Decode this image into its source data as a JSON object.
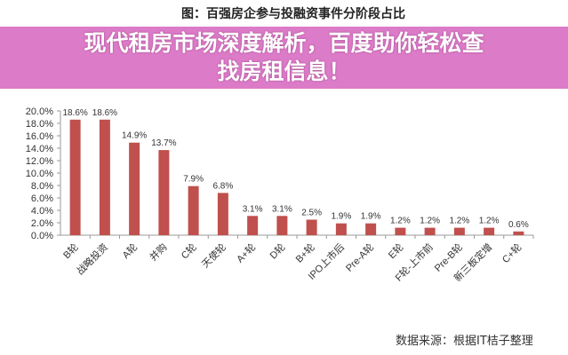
{
  "chart_data": {
    "type": "bar",
    "title": "图：百强房企参与投融资事件分阶段占比",
    "categories": [
      "B轮",
      "战略投资",
      "A轮",
      "并购",
      "C轮",
      "天使轮",
      "A+轮",
      "D轮",
      "B+轮",
      "IPO上市后",
      "Pre-A轮",
      "E轮",
      "F轮-上市前",
      "Pre-B轮",
      "新三板定增",
      "C+轮"
    ],
    "values": [
      18.6,
      18.6,
      14.9,
      13.7,
      7.9,
      6.8,
      3.1,
      3.1,
      2.5,
      1.9,
      1.9,
      1.2,
      1.2,
      1.2,
      1.2,
      0.6
    ],
    "labels": [
      "18.6%",
      "18.6%",
      "14.9%",
      "13.7%",
      "7.9%",
      "6.8%",
      "3.1%",
      "3.1%",
      "2.5%",
      "1.9%",
      "1.9%",
      "1.2%",
      "1.2%",
      "1.2%",
      "1.2%",
      "0.6%"
    ],
    "yticks": [
      "0.0%",
      "2.0%",
      "4.0%",
      "6.0%",
      "8.0%",
      "10.0%",
      "12.0%",
      "14.0%",
      "16.0%",
      "18.0%",
      "20.0%"
    ],
    "ylim": [
      0,
      20
    ],
    "xlabel": "",
    "ylabel": "",
    "bar_color": "#c0504d",
    "grid": false
  },
  "source": "数据来源：根据IT桔子整理",
  "banner": {
    "line1": "现代租房市场深度解析，百度助你轻松查",
    "line2": "找房租信息！"
  }
}
